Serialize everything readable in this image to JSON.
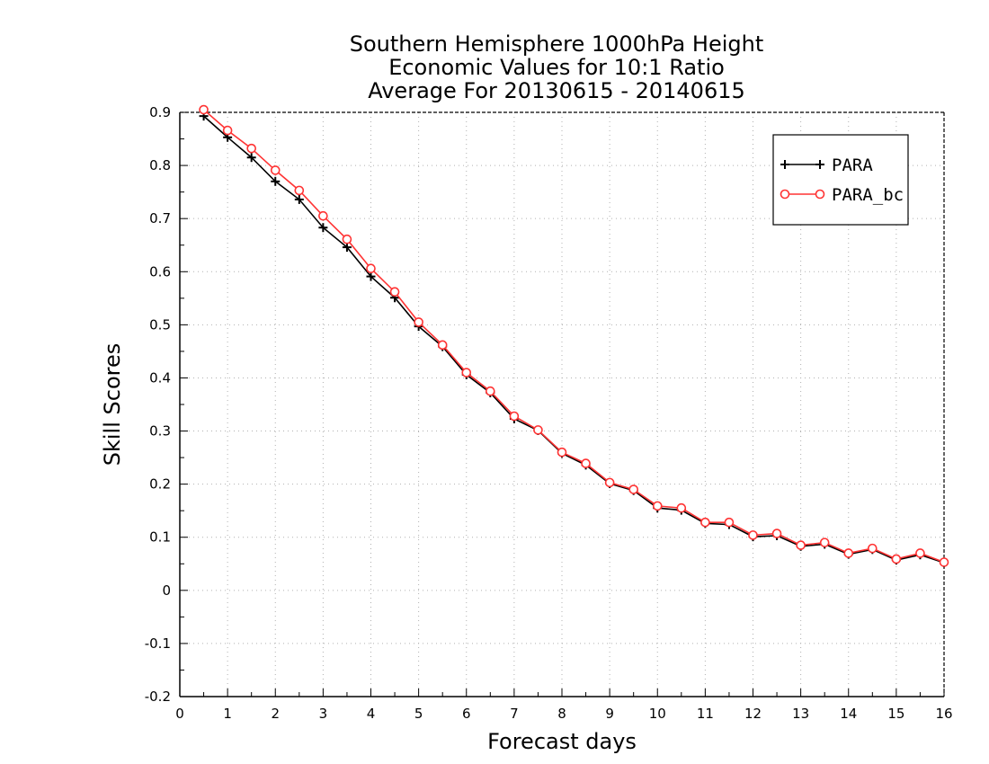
{
  "chart_data": {
    "type": "line",
    "title": [
      "Southern Hemisphere 1000hPa Height",
      "Economic Values for 10:1 Ratio",
      "Average For 20130615 - 20140615"
    ],
    "xlabel": "Forecast days",
    "ylabel": "Skill Scores",
    "xlim": [
      0,
      16
    ],
    "ylim": [
      -0.2,
      0.9
    ],
    "xticks": [
      "0",
      "1",
      "2",
      "3",
      "4",
      "5",
      "6",
      "7",
      "8",
      "9",
      "10",
      "11",
      "12",
      "13",
      "14",
      "15",
      "16"
    ],
    "yticks": [
      "-0.2",
      "-0.1",
      "0",
      "0.1",
      "0.2",
      "0.3",
      "0.4",
      "0.5",
      "0.6",
      "0.7",
      "0.8",
      "0.9"
    ],
    "grid": true,
    "legend_position": "top-right",
    "x": [
      0.5,
      1,
      1.5,
      2,
      2.5,
      3,
      3.5,
      4,
      4.5,
      5,
      5.5,
      6,
      6.5,
      7,
      7.5,
      8,
      8.5,
      9,
      9.5,
      10,
      10.5,
      11,
      11.5,
      12,
      12.5,
      13,
      13.5,
      14,
      14.5,
      15,
      15.5,
      16
    ],
    "series": [
      {
        "name": "PARA",
        "color": "#000000",
        "marker": "plus",
        "values": [
          0.893,
          0.853,
          0.815,
          0.77,
          0.736,
          0.683,
          0.646,
          0.591,
          0.551,
          0.497,
          0.459,
          0.406,
          0.372,
          0.323,
          0.301,
          0.258,
          0.236,
          0.201,
          0.188,
          0.155,
          0.151,
          0.126,
          0.124,
          0.101,
          0.103,
          0.083,
          0.087,
          0.068,
          0.077,
          0.057,
          0.067,
          0.052
        ]
      },
      {
        "name": "PARA_bc",
        "color": "#ff3333",
        "marker": "circle",
        "values": [
          0.905,
          0.866,
          0.832,
          0.791,
          0.753,
          0.705,
          0.661,
          0.606,
          0.562,
          0.505,
          0.462,
          0.41,
          0.375,
          0.328,
          0.302,
          0.26,
          0.239,
          0.203,
          0.19,
          0.159,
          0.155,
          0.128,
          0.128,
          0.104,
          0.107,
          0.085,
          0.09,
          0.07,
          0.079,
          0.059,
          0.07,
          0.053
        ]
      }
    ]
  }
}
